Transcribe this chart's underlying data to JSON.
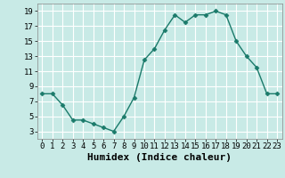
{
  "x": [
    0,
    1,
    2,
    3,
    4,
    5,
    6,
    7,
    8,
    9,
    10,
    11,
    12,
    13,
    14,
    15,
    16,
    17,
    18,
    19,
    20,
    21,
    22,
    23
  ],
  "y": [
    8,
    8,
    6.5,
    4.5,
    4.5,
    4,
    3.5,
    3,
    5,
    7.5,
    12.5,
    14,
    16.5,
    18.5,
    17.5,
    18.5,
    18.5,
    19,
    18.5,
    15,
    13,
    11.5,
    8,
    8
  ],
  "line_color": "#1a7a6a",
  "marker": "D",
  "marker_size": 2.5,
  "bg_color": "#c8eae6",
  "grid_color": "#ffffff",
  "xlabel": "Humidex (Indice chaleur)",
  "xlim": [
    -0.5,
    23.5
  ],
  "ylim": [
    2,
    20
  ],
  "yticks": [
    3,
    5,
    7,
    9,
    11,
    13,
    15,
    17,
    19
  ],
  "xtick_labels": [
    "0",
    "1",
    "2",
    "3",
    "4",
    "5",
    "6",
    "7",
    "8",
    "9",
    "10",
    "11",
    "12",
    "13",
    "14",
    "15",
    "16",
    "17",
    "18",
    "19",
    "20",
    "21",
    "22",
    "23"
  ],
  "tick_fontsize": 6.5,
  "label_fontsize": 8,
  "linewidth": 1.0
}
